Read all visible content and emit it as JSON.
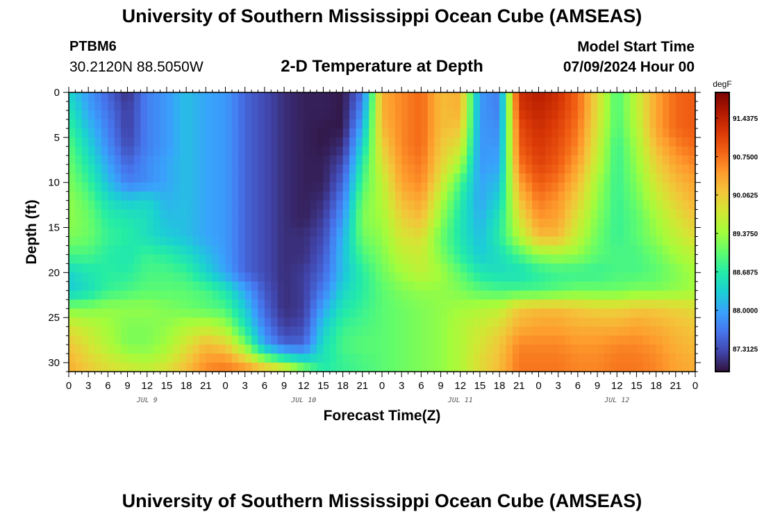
{
  "header": {
    "title": "University of Southern Mississippi Ocean Cube (AMSEAS)",
    "station_id": "PTBM6",
    "coords": "30.2120N  88.5050W",
    "subtitle": "2-D Temperature at Depth",
    "model_start_label": "Model Start Time",
    "model_start_value": "07/09/2024 Hour 00"
  },
  "footer": {
    "title": "University of Southern Mississippi Ocean Cube (AMSEAS)"
  },
  "colors": {
    "colormap": [
      "#30123b",
      "#4145ab",
      "#4675ed",
      "#39a2fc",
      "#1bcfd4",
      "#24eca6",
      "#61fc6c",
      "#a4fc3b",
      "#d1e834",
      "#f3c63a",
      "#fe9b2d",
      "#f36315",
      "#d93806",
      "#b11901",
      "#7a0402"
    ]
  },
  "chart_data": {
    "type": "heatmap",
    "title": "2-D Temperature at Depth",
    "xlabel": "Forecast Time(Z)",
    "ylabel": "Depth (ft)",
    "x_tick_labels": [
      "0",
      "3",
      "6",
      "9",
      "12",
      "15",
      "18",
      "21",
      "0",
      "3",
      "6",
      "9",
      "12",
      "15",
      "18",
      "21",
      "0",
      "3",
      "6",
      "9",
      "12",
      "15",
      "18",
      "21",
      "0",
      "3",
      "6",
      "9",
      "12",
      "15",
      "18",
      "21",
      "0"
    ],
    "x_range_hours": [
      0,
      96
    ],
    "date_labels": [
      {
        "text": "JUL 9",
        "hour": 12
      },
      {
        "text": "JUL 10",
        "hour": 36
      },
      {
        "text": "JUL 11",
        "hour": 60
      },
      {
        "text": "JUL 12",
        "hour": 84
      }
    ],
    "y_ticks": [
      0,
      5,
      10,
      15,
      20,
      25,
      30
    ],
    "y_range_ft": [
      0,
      31
    ],
    "colorbar": {
      "unit": "degF",
      "range": [
        86.9,
        91.9
      ],
      "labels": [
        "91.4375",
        "90.7500",
        "90.0625",
        "89.3750",
        "88.6875",
        "88.0000",
        "87.3125"
      ],
      "label_values": [
        91.4375,
        90.75,
        90.0625,
        89.375,
        88.6875,
        88.0,
        87.3125
      ]
    },
    "depth_levels_ft": [
      0,
      2,
      4,
      6,
      8,
      10,
      12,
      14,
      16,
      18,
      20,
      22,
      24,
      26,
      28,
      30,
      31
    ],
    "hours": [
      0,
      3,
      6,
      9,
      12,
      15,
      18,
      21,
      24,
      27,
      30,
      33,
      36,
      39,
      42,
      45,
      48,
      51,
      54,
      57,
      60,
      63,
      66,
      69,
      72,
      75,
      78,
      81,
      84,
      87,
      90,
      93,
      96
    ],
    "temperature_degF": [
      [
        88.4,
        87.9,
        87.5,
        87.1,
        87.7,
        87.9,
        88.2,
        88.0,
        87.9,
        87.5,
        87.3,
        87.1,
        87.0,
        87.0,
        86.95,
        87.6,
        90.3,
        90.6,
        90.8,
        90.2,
        90.3,
        87.9,
        87.7,
        91.3,
        91.5,
        91.3,
        90.8,
        89.9,
        88.9,
        89.6,
        90.4,
        90.8,
        90.9
      ],
      [
        88.6,
        88.0,
        87.6,
        87.2,
        87.7,
        87.9,
        88.2,
        88.0,
        87.9,
        87.5,
        87.3,
        87.1,
        87.0,
        87.0,
        86.95,
        87.8,
        90.3,
        90.6,
        90.8,
        90.2,
        90.3,
        87.9,
        87.7,
        91.2,
        91.4,
        91.2,
        90.8,
        89.9,
        88.9,
        89.6,
        90.4,
        90.8,
        90.9
      ],
      [
        88.8,
        88.2,
        87.7,
        87.2,
        87.7,
        87.9,
        88.2,
        88.0,
        87.9,
        87.5,
        87.3,
        87.1,
        87.0,
        86.95,
        86.95,
        88.1,
        90.2,
        90.6,
        90.8,
        90.2,
        90.1,
        87.9,
        87.8,
        91.0,
        91.3,
        91.1,
        90.7,
        89.8,
        88.9,
        89.5,
        90.4,
        90.8,
        90.9
      ],
      [
        89.0,
        88.4,
        87.8,
        87.3,
        87.7,
        87.9,
        88.2,
        88.0,
        87.9,
        87.5,
        87.3,
        87.1,
        87.0,
        86.95,
        87.1,
        88.4,
        90.0,
        90.6,
        90.8,
        90.1,
        89.8,
        87.9,
        87.9,
        90.9,
        91.2,
        91.0,
        90.6,
        89.7,
        88.8,
        89.4,
        90.2,
        90.6,
        90.8
      ],
      [
        89.1,
        88.6,
        88.0,
        87.5,
        87.8,
        88.0,
        88.2,
        88.0,
        87.9,
        87.5,
        87.3,
        87.1,
        87.0,
        87.0,
        87.3,
        88.7,
        89.8,
        90.5,
        90.7,
        90.0,
        89.4,
        87.9,
        88.0,
        90.7,
        91.1,
        90.9,
        90.4,
        89.6,
        88.8,
        89.3,
        90.0,
        90.4,
        90.6
      ],
      [
        89.2,
        88.8,
        88.2,
        87.7,
        87.8,
        88.0,
        88.2,
        88.0,
        87.9,
        87.5,
        87.3,
        87.1,
        87.0,
        87.0,
        87.5,
        88.9,
        89.6,
        90.4,
        90.6,
        89.8,
        88.9,
        88.0,
        88.2,
        90.4,
        90.9,
        90.7,
        90.2,
        89.4,
        88.8,
        89.2,
        89.8,
        90.2,
        90.4
      ],
      [
        89.3,
        89.0,
        88.5,
        88.3,
        88.4,
        88.1,
        88.2,
        88.0,
        87.9,
        87.5,
        87.3,
        87.1,
        87.0,
        87.1,
        87.7,
        89.1,
        89.5,
        90.2,
        90.4,
        89.5,
        88.7,
        88.0,
        88.4,
        90.1,
        90.7,
        90.5,
        90.0,
        89.3,
        88.8,
        89.1,
        89.6,
        90.0,
        90.3
      ],
      [
        89.3,
        89.1,
        88.7,
        88.6,
        88.5,
        88.2,
        88.2,
        88.0,
        87.9,
        87.5,
        87.3,
        87.1,
        87.0,
        87.2,
        87.9,
        89.2,
        89.4,
        90.0,
        90.2,
        89.3,
        88.6,
        88.1,
        88.6,
        89.8,
        90.5,
        90.4,
        89.8,
        89.2,
        88.8,
        89.0,
        89.4,
        89.8,
        90.1
      ],
      [
        89.2,
        89.1,
        88.8,
        88.7,
        88.5,
        88.3,
        88.2,
        88.0,
        87.9,
        87.5,
        87.3,
        87.1,
        87.1,
        87.3,
        88.1,
        89.1,
        89.3,
        89.8,
        89.9,
        89.1,
        88.6,
        88.2,
        88.7,
        89.5,
        90.2,
        90.2,
        89.6,
        89.1,
        88.8,
        89.0,
        89.3,
        89.6,
        89.9
      ],
      [
        88.9,
        88.9,
        88.7,
        88.6,
        88.8,
        88.7,
        88.5,
        88.2,
        87.9,
        87.5,
        87.3,
        87.1,
        87.1,
        87.4,
        88.2,
        88.9,
        89.2,
        89.6,
        89.7,
        89.2,
        88.7,
        88.3,
        88.5,
        88.9,
        89.3,
        89.4,
        89.3,
        89.0,
        88.9,
        88.9,
        89.1,
        89.4,
        89.6
      ],
      [
        88.4,
        88.6,
        88.7,
        88.7,
        88.9,
        88.9,
        88.8,
        88.4,
        88.0,
        87.5,
        87.3,
        87.1,
        87.2,
        87.5,
        88.2,
        88.7,
        89.1,
        89.4,
        89.6,
        89.4,
        89.0,
        88.6,
        88.5,
        88.5,
        88.7,
        88.8,
        88.8,
        88.8,
        88.9,
        88.9,
        89.0,
        89.2,
        89.4
      ],
      [
        88.3,
        88.5,
        88.8,
        88.9,
        89.0,
        89.0,
        89.0,
        88.9,
        88.6,
        88.0,
        87.4,
        87.1,
        87.2,
        87.7,
        88.4,
        88.7,
        89.0,
        89.2,
        89.3,
        89.3,
        89.2,
        89.0,
        88.9,
        88.9,
        88.9,
        89.0,
        89.1,
        89.1,
        89.1,
        89.2,
        89.2,
        89.3,
        89.4
      ],
      [
        89.2,
        89.2,
        89.3,
        89.3,
        89.3,
        89.2,
        89.1,
        89.0,
        88.9,
        88.3,
        87.5,
        87.1,
        87.2,
        88.0,
        88.6,
        88.8,
        89.0,
        89.1,
        89.2,
        89.3,
        89.4,
        89.5,
        89.6,
        90.1,
        90.2,
        90.2,
        90.1,
        90.0,
        90.0,
        90.1,
        90.1,
        90.0,
        89.9
      ],
      [
        89.8,
        89.6,
        89.4,
        89.2,
        89.2,
        89.3,
        89.5,
        89.6,
        89.4,
        88.6,
        87.7,
        87.2,
        87.3,
        88.3,
        88.8,
        88.9,
        89.0,
        89.1,
        89.2,
        89.3,
        89.5,
        89.7,
        89.9,
        90.3,
        90.4,
        90.4,
        90.3,
        90.3,
        90.3,
        90.4,
        90.3,
        90.2,
        90.1
      ],
      [
        90.1,
        89.8,
        89.5,
        89.2,
        89.2,
        89.4,
        89.8,
        90.2,
        90.0,
        89.2,
        88.0,
        87.5,
        87.5,
        88.5,
        88.9,
        89.0,
        89.0,
        89.1,
        89.2,
        89.3,
        89.5,
        89.8,
        90.1,
        90.6,
        90.6,
        90.6,
        90.5,
        90.5,
        90.6,
        90.6,
        90.5,
        90.3,
        90.2
      ],
      [
        90.3,
        90.0,
        89.8,
        89.6,
        89.5,
        89.7,
        90.1,
        90.5,
        90.6,
        90.2,
        89.5,
        89.0,
        88.6,
        88.6,
        88.8,
        88.9,
        89.0,
        89.1,
        89.2,
        89.3,
        89.5,
        89.9,
        90.2,
        90.7,
        90.7,
        90.7,
        90.6,
        90.6,
        90.7,
        90.7,
        90.6,
        90.4,
        90.3
      ],
      [
        90.3,
        90.1,
        89.9,
        89.8,
        89.7,
        89.9,
        90.2,
        90.6,
        90.7,
        90.6,
        90.4,
        90.2,
        89.4,
        88.7,
        88.8,
        88.9,
        89.0,
        89.1,
        89.2,
        89.3,
        89.5,
        89.9,
        90.2,
        90.7,
        90.7,
        90.7,
        90.6,
        90.6,
        90.7,
        90.7,
        90.6,
        90.4,
        90.3
      ]
    ]
  }
}
